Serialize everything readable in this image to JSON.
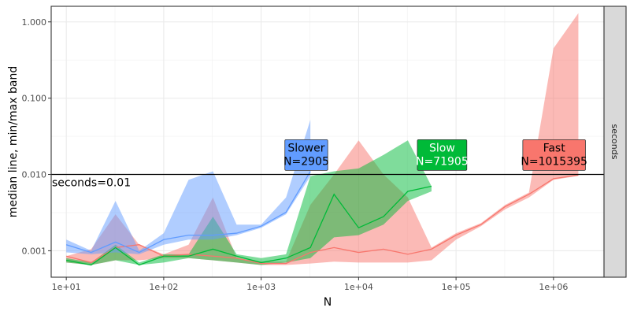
{
  "chart_data": {
    "type": "area",
    "xlabel": "N",
    "ylabel": "median line, min/max band",
    "x_scale": "log10",
    "y_scale": "log10",
    "xlim": [
      7,
      3300000
    ],
    "ylim": [
      0.00045,
      1.6
    ],
    "x_ticks": [
      {
        "value": 10,
        "label": "1e+01"
      },
      {
        "value": 100,
        "label": "1e+02"
      },
      {
        "value": 1000,
        "label": "1e+03"
      },
      {
        "value": 10000,
        "label": "1e+04"
      },
      {
        "value": 100000,
        "label": "1e+05"
      },
      {
        "value": 1000000,
        "label": "1e+06"
      }
    ],
    "y_ticks": [
      {
        "value": 0.001,
        "label": "0.001"
      },
      {
        "value": 0.01,
        "label": "0.010"
      },
      {
        "value": 0.1,
        "label": "0.100"
      },
      {
        "value": 1,
        "label": "1.000"
      }
    ],
    "grid": true,
    "facet_strip": "seconds",
    "hline": {
      "value": 0.01,
      "label": "seconds=0.01"
    },
    "series": [
      {
        "name": "Fast",
        "color": "#F8766D",
        "band_alpha": 0.5,
        "x": [
          10,
          18,
          32,
          56,
          100,
          180,
          320,
          560,
          1000,
          1800,
          3200,
          5600,
          10000,
          18000,
          32000,
          56000,
          100000,
          180000,
          320000,
          560000,
          1000000,
          1800000
        ],
        "median": [
          0.00085,
          0.0007,
          0.0011,
          0.0012,
          0.00085,
          0.0009,
          0.00085,
          0.0008,
          0.00068,
          0.00068,
          0.00095,
          0.0011,
          0.00095,
          0.00105,
          0.0009,
          0.00105,
          0.0016,
          0.0022,
          0.0038,
          0.0055,
          0.0088,
          0.0098
        ],
        "min": [
          0.0007,
          0.00065,
          0.00075,
          0.00075,
          0.0008,
          0.0008,
          0.00075,
          0.0007,
          0.00065,
          0.00065,
          0.00068,
          0.00072,
          0.0007,
          0.0007,
          0.0007,
          0.00075,
          0.0014,
          0.0021,
          0.0035,
          0.005,
          0.0085,
          0.0096
        ],
        "max": [
          0.00085,
          0.00105,
          0.003,
          0.0012,
          0.0009,
          0.0012,
          0.005,
          0.0008,
          0.00072,
          0.00072,
          0.004,
          0.01,
          0.028,
          0.01,
          0.005,
          0.0011,
          0.0017,
          0.0023,
          0.004,
          0.0058,
          0.45,
          1.3
        ]
      },
      {
        "name": "Slow",
        "color": "#00BA38",
        "band_alpha": 0.5,
        "x": [
          10,
          18,
          32,
          56,
          100,
          180,
          320,
          560,
          1000,
          1800,
          3200,
          5600,
          10000,
          18000,
          32000,
          56000
        ],
        "median": [
          0.00075,
          0.00065,
          0.0011,
          0.00065,
          0.00085,
          0.00085,
          0.00105,
          0.00085,
          0.0007,
          0.0008,
          0.0011,
          0.0055,
          0.002,
          0.0028,
          0.006,
          0.007
        ],
        "min": [
          0.0007,
          0.00065,
          0.00075,
          0.00065,
          0.0007,
          0.0008,
          0.00075,
          0.0007,
          0.00065,
          0.0007,
          0.0008,
          0.0015,
          0.0016,
          0.0022,
          0.0045,
          0.006
        ],
        "max": [
          0.0008,
          0.0007,
          0.0012,
          0.0007,
          0.0009,
          0.0009,
          0.0028,
          0.0009,
          0.0008,
          0.0009,
          0.0095,
          0.011,
          0.012,
          0.018,
          0.028,
          0.007
        ]
      },
      {
        "name": "Slower",
        "color": "#619CFF",
        "band_alpha": 0.5,
        "x": [
          10,
          18,
          32,
          56,
          100,
          180,
          320,
          560,
          1000,
          1800,
          3200
        ],
        "median": [
          0.0012,
          0.00095,
          0.0013,
          0.00095,
          0.0014,
          0.0016,
          0.0016,
          0.0017,
          0.0021,
          0.0032,
          0.011
        ],
        "min": [
          0.00095,
          0.0009,
          0.00095,
          0.0009,
          0.0012,
          0.0014,
          0.0014,
          0.0016,
          0.002,
          0.003,
          0.0095
        ],
        "max": [
          0.0014,
          0.001,
          0.0045,
          0.001,
          0.0017,
          0.0085,
          0.011,
          0.0022,
          0.0022,
          0.005,
          0.052
        ]
      }
    ],
    "labels": [
      {
        "series": "Slower",
        "text": "Slower\nN=2905",
        "x": 2905,
        "y": 0.0113,
        "fill": "#619CFF",
        "text_color": "#000000"
      },
      {
        "series": "Slow",
        "text": "Slow\nN=71905",
        "x": 71905,
        "y": 0.0113,
        "fill": "#00BA38",
        "text_color": "#ffffff"
      },
      {
        "series": "Fast",
        "text": "Fast\nN=1015395",
        "x": 1015395,
        "y": 0.0113,
        "fill": "#F8766D",
        "text_color": "#000000"
      }
    ]
  }
}
